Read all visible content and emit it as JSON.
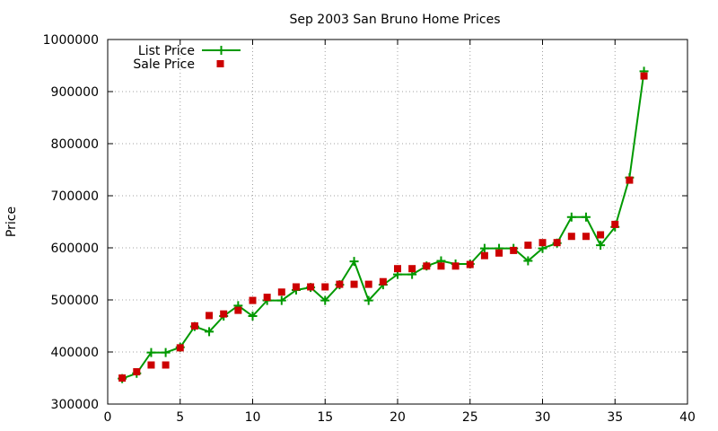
{
  "chart_data": {
    "type": "line",
    "title": "Sep 2003 San Bruno Home Prices",
    "xlabel": "",
    "ylabel": "Price",
    "xlim": [
      0,
      40
    ],
    "ylim": [
      300000,
      1000000
    ],
    "xticks": [
      0,
      5,
      10,
      15,
      20,
      25,
      30,
      35,
      40
    ],
    "yticks": [
      300000,
      400000,
      500000,
      600000,
      700000,
      800000,
      900000,
      1000000
    ],
    "grid": true,
    "legend_position": "top-left",
    "x": [
      1,
      2,
      3,
      4,
      5,
      6,
      7,
      8,
      9,
      10,
      11,
      12,
      13,
      14,
      15,
      16,
      17,
      18,
      19,
      20,
      21,
      22,
      23,
      24,
      25,
      26,
      27,
      28,
      29,
      30,
      31,
      32,
      33,
      34,
      35,
      36,
      37
    ],
    "series": [
      {
        "name": "List Price",
        "style": "line-with-plus-markers",
        "color": "#009900",
        "values": [
          349000,
          359000,
          399000,
          399000,
          409000,
          449000,
          439000,
          469000,
          489000,
          469000,
          499000,
          499000,
          519000,
          524000,
          499000,
          529000,
          574000,
          499000,
          529000,
          549000,
          549000,
          565000,
          575000,
          569000,
          569000,
          599000,
          599000,
          599000,
          575000,
          599000,
          609000,
          659000,
          659000,
          605000,
          640000,
          735000,
          939000
        ]
      },
      {
        "name": "Sale Price",
        "style": "square-markers",
        "color": "#cc0000",
        "values": [
          350000,
          362000,
          375000,
          375000,
          408000,
          450000,
          470000,
          473000,
          480000,
          499000,
          505000,
          515000,
          525000,
          525000,
          525000,
          530000,
          530000,
          530000,
          535000,
          560000,
          560000,
          565000,
          565000,
          565000,
          568000,
          585000,
          590000,
          595000,
          605000,
          610000,
          610000,
          622000,
          622000,
          625000,
          645000,
          730000,
          930000
        ]
      }
    ]
  }
}
